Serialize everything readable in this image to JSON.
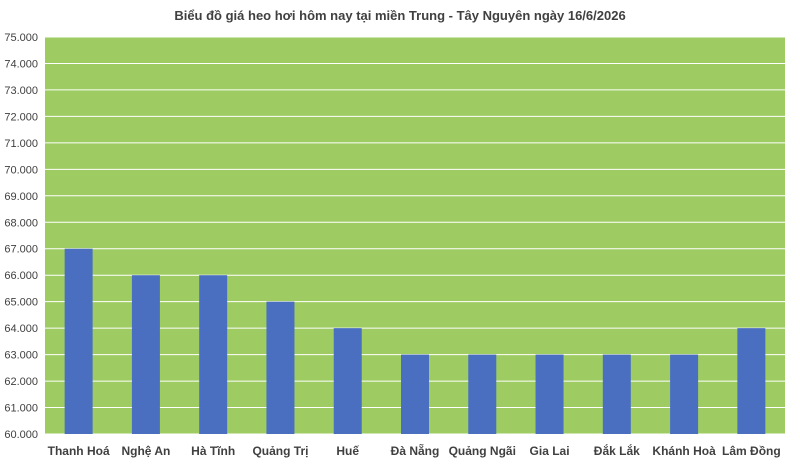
{
  "chart_data": {
    "type": "bar",
    "title": "Biểu đồ giá heo hơi hôm nay tại miền Trung - Tây Nguyên ngày 16/6/2026",
    "categories": [
      "Thanh Hoá",
      "Nghệ An",
      "Hà Tĩnh",
      "Quảng Trị",
      "Huế",
      "Đà Nẵng",
      "Quảng Ngãi",
      "Gia Lai",
      "Đắk Lắk",
      "Khánh Hoà",
      "Lâm Đồng"
    ],
    "values": [
      67000,
      66000,
      66000,
      65000,
      64000,
      63000,
      63000,
      63000,
      63000,
      63000,
      64000
    ],
    "ylim": [
      60000,
      75000
    ],
    "ytick_step": 1000,
    "ytick_labels": [
      "60.000",
      "61.000",
      "62.000",
      "63.000",
      "64.000",
      "65.000",
      "66.000",
      "67.000",
      "68.000",
      "69.000",
      "70.000",
      "71.000",
      "72.000",
      "73.000",
      "74.000",
      "75.000"
    ],
    "grid": true,
    "legend": "none",
    "colors": {
      "plot_background": "#9ecb62",
      "bar": "#4a6fc0",
      "grid": "#ffffff",
      "text": "#404040"
    }
  }
}
